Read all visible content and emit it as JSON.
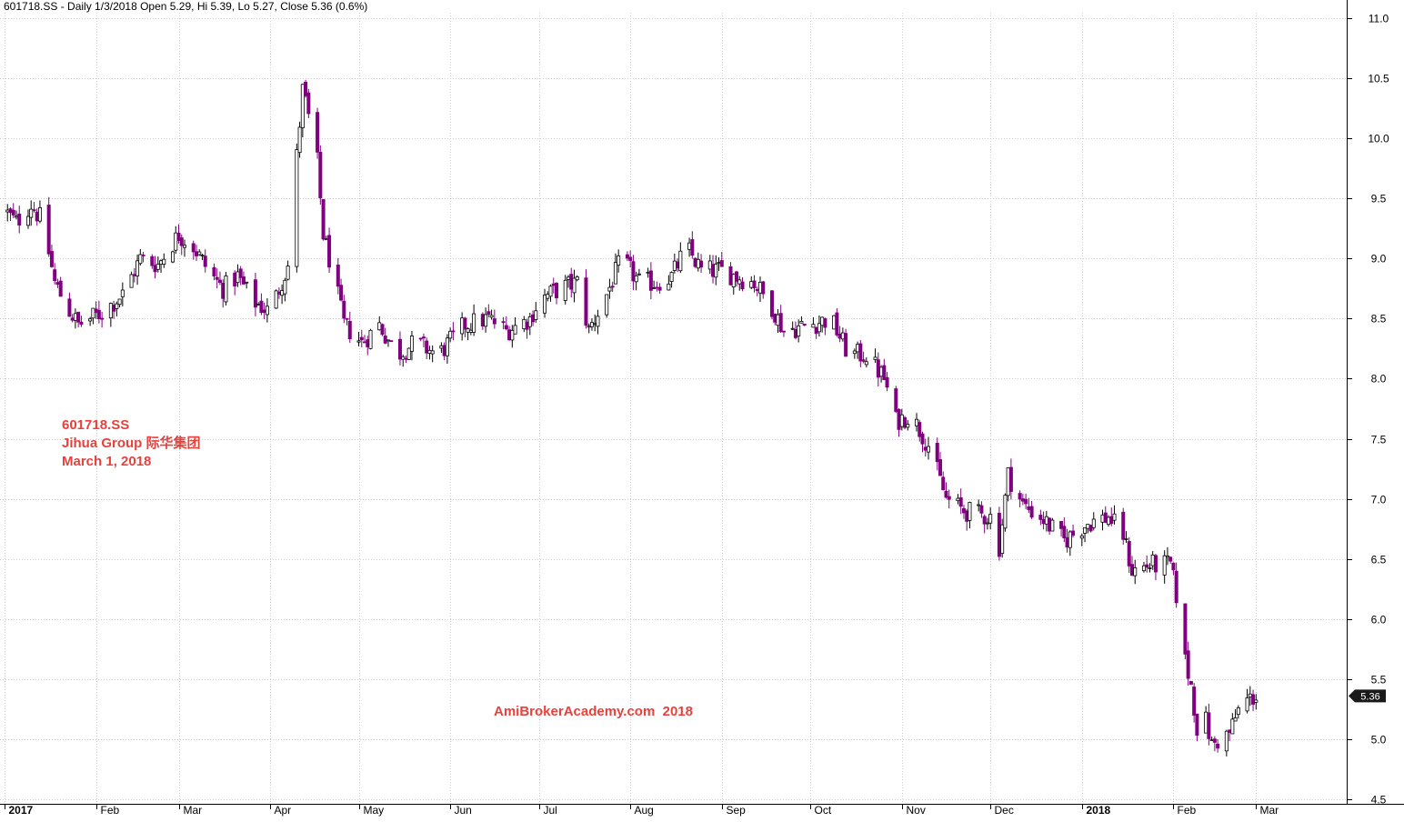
{
  "header": {
    "text": "601718.SS - Daily 1/3/2018 Open 5.29, Hi 5.39, Lo 5.27, Close 5.36 (0.6%)"
  },
  "annotation": {
    "line1": "601718.SS",
    "line2": "Jihua Group  际华集团",
    "line3": "March 1, 2018"
  },
  "watermark": "AmiBrokerAcademy.com  2018",
  "last_price_label": "5.36",
  "colors": {
    "down_candle": "#800080",
    "up_candle_fill": "#ffffff",
    "up_candle_stroke": "#000000",
    "grid": "#d0d0d0",
    "annotation": "#e8413c",
    "price_tag_bg": "#1a1a1a",
    "price_tag_fg": "#ffffff"
  },
  "chart_data": {
    "type": "candlestick",
    "ylim": [
      4.5,
      11.0
    ],
    "y_ticks": [
      "4.5",
      "5.0",
      "5.5",
      "6.0",
      "6.5",
      "7.0",
      "7.5",
      "8.0",
      "8.5",
      "9.0",
      "9.5",
      "10.0",
      "10.5",
      "11.0"
    ],
    "x_ticks": [
      {
        "label": "2017",
        "bold": true,
        "date": "2017-01-01"
      },
      {
        "label": "Feb",
        "bold": false,
        "date": "2017-02-01"
      },
      {
        "label": "Mar",
        "bold": false,
        "date": "2017-03-01"
      },
      {
        "label": "Apr",
        "bold": false,
        "date": "2017-04-01"
      },
      {
        "label": "May",
        "bold": false,
        "date": "2017-05-01"
      },
      {
        "label": "Jun",
        "bold": false,
        "date": "2017-06-01"
      },
      {
        "label": "Jul",
        "bold": false,
        "date": "2017-07-01"
      },
      {
        "label": "Aug",
        "bold": false,
        "date": "2017-08-01"
      },
      {
        "label": "Sep",
        "bold": false,
        "date": "2017-09-01"
      },
      {
        "label": "Oct",
        "bold": false,
        "date": "2017-10-01"
      },
      {
        "label": "Nov",
        "bold": false,
        "date": "2017-11-01"
      },
      {
        "label": "Dec",
        "bold": false,
        "date": "2017-12-01"
      },
      {
        "label": "2018",
        "bold": true,
        "date": "2018-01-01"
      },
      {
        "label": "Feb",
        "bold": false,
        "date": "2018-02-01"
      },
      {
        "label": "Mar",
        "bold": false,
        "date": "2018-03-01"
      }
    ],
    "x_start": "2017-01-01",
    "x_end": "2018-03-16",
    "grid": true,
    "keypoints": [
      [
        "2017-01-01",
        9.4
      ],
      [
        "2017-01-05",
        9.3
      ],
      [
        "2017-01-10",
        9.45
      ],
      [
        "2017-01-14",
        9.3
      ],
      [
        "2017-01-18",
        8.8
      ],
      [
        "2017-01-22",
        8.6
      ],
      [
        "2017-01-26",
        8.45
      ],
      [
        "2017-02-03",
        8.55
      ],
      [
        "2017-02-10",
        8.7
      ],
      [
        "2017-02-16",
        9.0
      ],
      [
        "2017-02-22",
        8.95
      ],
      [
        "2017-03-01",
        9.2
      ],
      [
        "2017-03-06",
        9.1
      ],
      [
        "2017-03-11",
        8.9
      ],
      [
        "2017-03-16",
        8.75
      ],
      [
        "2017-03-21",
        8.85
      ],
      [
        "2017-03-26",
        8.65
      ],
      [
        "2017-04-01",
        8.55
      ],
      [
        "2017-04-04",
        8.75
      ],
      [
        "2017-04-08",
        9.0
      ],
      [
        "2017-04-10",
        9.85
      ],
      [
        "2017-04-12",
        10.4
      ],
      [
        "2017-04-13",
        10.3
      ],
      [
        "2017-04-17",
        9.8
      ],
      [
        "2017-04-19",
        9.2
      ],
      [
        "2017-04-23",
        8.8
      ],
      [
        "2017-04-26",
        8.45
      ],
      [
        "2017-05-02",
        8.3
      ],
      [
        "2017-05-08",
        8.45
      ],
      [
        "2017-05-14",
        8.2
      ],
      [
        "2017-05-20",
        8.3
      ],
      [
        "2017-05-28",
        8.2
      ],
      [
        "2017-06-06",
        8.45
      ],
      [
        "2017-06-14",
        8.5
      ],
      [
        "2017-06-20",
        8.4
      ],
      [
        "2017-06-28",
        8.5
      ],
      [
        "2017-07-01",
        8.65
      ],
      [
        "2017-07-08",
        8.75
      ],
      [
        "2017-07-14",
        8.8
      ],
      [
        "2017-07-18",
        8.4
      ],
      [
        "2017-07-24",
        8.7
      ],
      [
        "2017-07-29",
        9.0
      ],
      [
        "2017-08-04",
        8.8
      ],
      [
        "2017-08-10",
        8.8
      ],
      [
        "2017-08-15",
        8.85
      ],
      [
        "2017-08-20",
        9.1
      ],
      [
        "2017-08-25",
        8.9
      ],
      [
        "2017-09-01",
        8.9
      ],
      [
        "2017-09-06",
        8.85
      ],
      [
        "2017-09-12",
        8.8
      ],
      [
        "2017-09-18",
        8.6
      ],
      [
        "2017-09-22",
        8.4
      ],
      [
        "2017-10-01",
        8.45
      ],
      [
        "2017-10-08",
        8.5
      ],
      [
        "2017-10-14",
        8.2
      ],
      [
        "2017-10-20",
        8.2
      ],
      [
        "2017-10-26",
        8.0
      ],
      [
        "2017-10-30",
        7.65
      ],
      [
        "2017-11-04",
        7.7
      ],
      [
        "2017-11-10",
        7.45
      ],
      [
        "2017-11-16",
        7.0
      ],
      [
        "2017-11-22",
        6.9
      ],
      [
        "2017-12-01",
        6.85
      ],
      [
        "2017-12-04",
        6.6
      ],
      [
        "2017-12-07",
        7.2
      ],
      [
        "2017-12-12",
        6.95
      ],
      [
        "2017-12-18",
        6.85
      ],
      [
        "2017-12-26",
        6.65
      ],
      [
        "2018-01-03",
        6.8
      ],
      [
        "2018-01-10",
        6.85
      ],
      [
        "2018-01-15",
        6.7
      ],
      [
        "2018-01-18",
        6.4
      ],
      [
        "2018-01-24",
        6.45
      ],
      [
        "2018-01-31",
        6.45
      ],
      [
        "2018-02-02",
        6.2
      ],
      [
        "2018-02-04",
        5.75
      ],
      [
        "2018-02-07",
        5.45
      ],
      [
        "2018-02-09",
        5.1
      ],
      [
        "2018-02-12",
        5.15
      ],
      [
        "2018-02-14",
        4.95
      ],
      [
        "2018-02-20",
        5.05
      ],
      [
        "2018-02-24",
        5.3
      ],
      [
        "2018-03-01",
        5.36
      ]
    ],
    "last_close": 5.36
  }
}
